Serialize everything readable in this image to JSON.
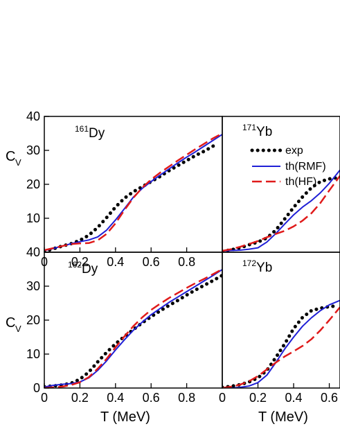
{
  "figure": {
    "x_axis_label": "T (MeV)",
    "y_axis_label_main": "C",
    "y_axis_label_sub": "V"
  },
  "legend": {
    "entries": [
      {
        "label": "exp",
        "style": "dotted",
        "color": "#000000"
      },
      {
        "label": "th(RMF)",
        "style": "solid",
        "color": "#1f1fd6"
      },
      {
        "label": "th(HF)",
        "style": "dashed",
        "color": "#e01a1a"
      }
    ]
  },
  "chart_data": [
    {
      "type": "line",
      "panel": "top-left",
      "label_mass": "161",
      "label_element": "Dy",
      "xlim": [
        0,
        1.0
      ],
      "ylim": [
        0,
        40
      ],
      "xticks": [
        0,
        0.2,
        0.4,
        0.6,
        0.8
      ],
      "xtick_labels": [
        "0",
        "0.2",
        "0.4",
        "0.6",
        "0.8"
      ],
      "yticks": [
        0,
        10,
        20,
        30,
        40
      ],
      "ytick_labels": [
        "",
        "10",
        "20",
        "30",
        "40"
      ],
      "series": [
        {
          "name": "exp",
          "x": [
            0,
            0.05,
            0.1,
            0.15,
            0.2,
            0.25,
            0.3,
            0.35,
            0.4,
            0.45,
            0.5,
            0.55,
            0.6,
            0.65,
            0.7,
            0.75,
            0.8,
            0.85,
            0.9,
            0.95
          ],
          "y": [
            0.2,
            1.0,
            1.8,
            2.5,
            3.5,
            5.0,
            7.3,
            10.2,
            13.3,
            15.9,
            17.8,
            19.3,
            20.8,
            22.3,
            24.0,
            25.5,
            27.0,
            28.5,
            29.8,
            31.3
          ]
        },
        {
          "name": "th(RMF)",
          "x": [
            0,
            0.05,
            0.1,
            0.15,
            0.2,
            0.25,
            0.3,
            0.35,
            0.4,
            0.45,
            0.5,
            0.55,
            0.6,
            0.65,
            0.7,
            0.75,
            0.8,
            0.85,
            0.9,
            0.95,
            1.0
          ],
          "y": [
            0.5,
            1.1,
            1.8,
            2.5,
            3.1,
            3.6,
            4.5,
            6.5,
            9.5,
            12.8,
            16.2,
            18.8,
            20.8,
            22.7,
            24.5,
            26.3,
            28.0,
            29.6,
            31.3,
            33.0,
            34.7
          ]
        },
        {
          "name": "th(HF)",
          "x": [
            0,
            0.05,
            0.1,
            0.15,
            0.2,
            0.25,
            0.3,
            0.35,
            0.4,
            0.45,
            0.5,
            0.55,
            0.6,
            0.65,
            0.7,
            0.75,
            0.8,
            0.85,
            0.9,
            0.95,
            1.0
          ],
          "y": [
            0.6,
            1.2,
            1.8,
            2.4,
            2.6,
            2.7,
            3.5,
            5.4,
            8.5,
            12.4,
            16.0,
            19.0,
            21.4,
            23.4,
            25.2,
            27.0,
            28.7,
            30.4,
            32.0,
            33.6,
            35.0
          ]
        }
      ]
    },
    {
      "type": "line",
      "panel": "top-right",
      "label_mass": "171",
      "label_element": "Yb",
      "xlim": [
        0,
        0.66
      ],
      "ylim": [
        0,
        40
      ],
      "series": [
        {
          "name": "exp",
          "x": [
            0,
            0.05,
            0.1,
            0.15,
            0.2,
            0.25,
            0.3,
            0.35,
            0.4,
            0.45,
            0.5,
            0.55,
            0.6,
            0.65
          ],
          "y": [
            0.3,
            0.7,
            1.3,
            2.2,
            3.0,
            4.2,
            6.5,
            9.8,
            13.2,
            16.3,
            19.0,
            20.8,
            21.6,
            22.0
          ]
        },
        {
          "name": "th(RMF)",
          "x": [
            0,
            0.05,
            0.1,
            0.15,
            0.2,
            0.25,
            0.3,
            0.35,
            0.4,
            0.45,
            0.5,
            0.55,
            0.6,
            0.66
          ],
          "y": [
            0.4,
            0.5,
            0.6,
            0.9,
            1.3,
            3.0,
            5.5,
            8.3,
            11.0,
            13.3,
            15.2,
            17.5,
            20.3,
            24.2
          ]
        },
        {
          "name": "th(HF)",
          "x": [
            0,
            0.05,
            0.1,
            0.15,
            0.2,
            0.25,
            0.3,
            0.35,
            0.4,
            0.45,
            0.5,
            0.55,
            0.6,
            0.66
          ],
          "y": [
            0.4,
            0.9,
            1.6,
            2.4,
            3.3,
            4.4,
            5.4,
            6.3,
            7.6,
            9.3,
            11.5,
            14.5,
            18.2,
            22.5
          ]
        }
      ]
    },
    {
      "type": "line",
      "panel": "bottom-left",
      "label_mass": "162",
      "label_element": "Dy",
      "xlim": [
        0,
        1.0
      ],
      "ylim": [
        0,
        40
      ],
      "xticks": [
        0,
        0.2,
        0.4,
        0.6,
        0.8
      ],
      "xtick_labels": [
        "0",
        "0.2",
        "0.4",
        "0.6",
        "0.8"
      ],
      "yticks": [
        0,
        10,
        20,
        30,
        40
      ],
      "ytick_labels": [
        "0",
        "10",
        "20",
        "30",
        "40"
      ],
      "series": [
        {
          "name": "exp",
          "x": [
            0,
            0.05,
            0.1,
            0.15,
            0.2,
            0.25,
            0.3,
            0.35,
            0.4,
            0.45,
            0.5,
            0.55,
            0.6,
            0.65,
            0.7,
            0.75,
            0.8,
            0.85,
            0.9,
            0.95,
            1.0
          ],
          "y": [
            0.4,
            0.6,
            0.9,
            1.4,
            2.6,
            4.7,
            7.7,
            10.5,
            13.0,
            15.2,
            17.2,
            19.2,
            21.0,
            22.7,
            24.3,
            25.8,
            27.4,
            28.9,
            30.3,
            31.7,
            33.2
          ]
        },
        {
          "name": "th(RMF)",
          "x": [
            0,
            0.05,
            0.1,
            0.15,
            0.2,
            0.25,
            0.3,
            0.35,
            0.4,
            0.45,
            0.5,
            0.55,
            0.6,
            0.65,
            0.7,
            0.75,
            0.8,
            0.85,
            0.9,
            0.95,
            1.0
          ],
          "y": [
            0.3,
            0.8,
            1.1,
            1.3,
            1.8,
            3.0,
            5.2,
            8.0,
            11.2,
            14.2,
            17.0,
            19.4,
            21.6,
            23.4,
            25.2,
            26.8,
            28.4,
            30.0,
            31.6,
            33.2,
            34.9
          ]
        },
        {
          "name": "th(HF)",
          "x": [
            0,
            0.05,
            0.1,
            0.15,
            0.2,
            0.25,
            0.3,
            0.35,
            0.4,
            0.45,
            0.5,
            0.55,
            0.6,
            0.65,
            0.7,
            0.75,
            0.8,
            0.85,
            0.9,
            0.95,
            1.0
          ],
          "y": [
            0.0,
            0.2,
            0.4,
            0.9,
            1.7,
            3.2,
            5.7,
            8.6,
            12.0,
            15.2,
            18.2,
            20.8,
            23.0,
            24.8,
            26.5,
            28.0,
            29.5,
            30.9,
            32.2,
            33.6,
            35.0
          ]
        }
      ]
    },
    {
      "type": "line",
      "panel": "bottom-right",
      "label_mass": "172",
      "label_element": "Yb",
      "xlim": [
        0,
        0.66
      ],
      "ylim": [
        0,
        40
      ],
      "xticks": [
        0,
        0.2,
        0.4,
        0.6
      ],
      "xtick_labels": [
        "0",
        "0.2",
        "0.4",
        "0.6"
      ],
      "series": [
        {
          "name": "exp",
          "x": [
            0,
            0.05,
            0.1,
            0.15,
            0.2,
            0.25,
            0.3,
            0.35,
            0.4,
            0.45,
            0.5,
            0.55,
            0.6,
            0.65
          ],
          "y": [
            0.2,
            0.5,
            1.0,
            1.8,
            3.0,
            5.2,
            9.0,
            13.0,
            17.5,
            20.8,
            22.8,
            23.5,
            24.0,
            24.2
          ]
        },
        {
          "name": "th(RMF)",
          "x": [
            0,
            0.05,
            0.1,
            0.15,
            0.2,
            0.25,
            0.3,
            0.35,
            0.4,
            0.45,
            0.5,
            0.55,
            0.6,
            0.66
          ],
          "y": [
            0.0,
            0.0,
            0.2,
            0.6,
            1.6,
            3.8,
            7.5,
            11.5,
            15.0,
            18.2,
            20.7,
            22.8,
            24.5,
            25.8
          ]
        },
        {
          "name": "th(HF)",
          "x": [
            0,
            0.05,
            0.1,
            0.15,
            0.2,
            0.25,
            0.3,
            0.35,
            0.4,
            0.45,
            0.5,
            0.55,
            0.6,
            0.66
          ],
          "y": [
            0.0,
            0.4,
            1.0,
            2.0,
            3.5,
            5.5,
            7.5,
            9.3,
            10.8,
            12.4,
            14.4,
            17.0,
            20.0,
            23.8
          ]
        }
      ]
    }
  ]
}
